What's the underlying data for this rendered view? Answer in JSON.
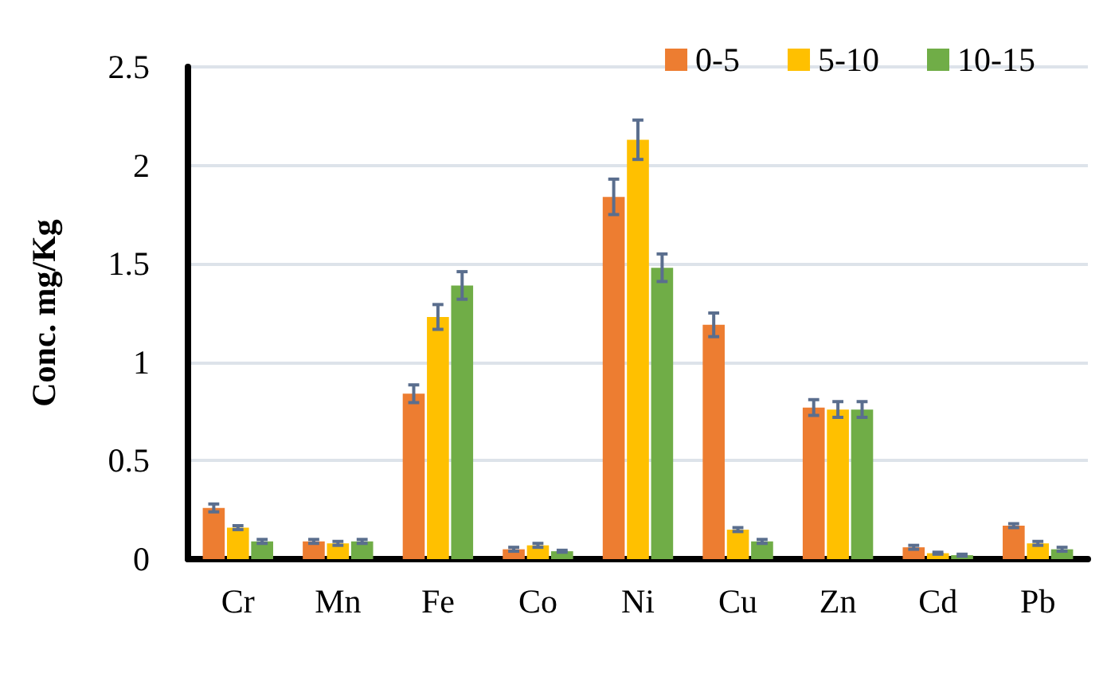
{
  "chart_data": {
    "type": "bar",
    "ylabel": "Conc. mg/Kg",
    "categories": [
      "Cr",
      "Mn",
      "Fe",
      "Co",
      "Ni",
      "Cu",
      "Zn",
      "Cd",
      "Pb"
    ],
    "series": [
      {
        "name": "0-5",
        "color": "#ed7d31",
        "values": [
          0.26,
          0.09,
          0.84,
          0.05,
          1.84,
          1.19,
          0.77,
          0.06,
          0.17
        ],
        "errors": [
          0.02,
          0.01,
          0.045,
          0.01,
          0.09,
          0.06,
          0.04,
          0.01,
          0.01
        ]
      },
      {
        "name": "5-10",
        "color": "#ffc000",
        "values": [
          0.16,
          0.08,
          1.23,
          0.07,
          2.13,
          0.15,
          0.76,
          0.03,
          0.08
        ],
        "errors": [
          0.01,
          0.01,
          0.063,
          0.01,
          0.1,
          0.01,
          0.04,
          0.005,
          0.01
        ]
      },
      {
        "name": "10-15",
        "color": "#70ad47",
        "values": [
          0.09,
          0.09,
          1.39,
          0.04,
          1.48,
          0.09,
          0.76,
          0.02,
          0.05
        ],
        "errors": [
          0.01,
          0.01,
          0.07,
          0.005,
          0.07,
          0.01,
          0.04,
          0.005,
          0.01
        ]
      }
    ],
    "ylim": [
      0,
      2.5
    ],
    "yticks": [
      0,
      0.5,
      1,
      1.5,
      2,
      2.5
    ],
    "grid": "y",
    "legend": "top right"
  }
}
